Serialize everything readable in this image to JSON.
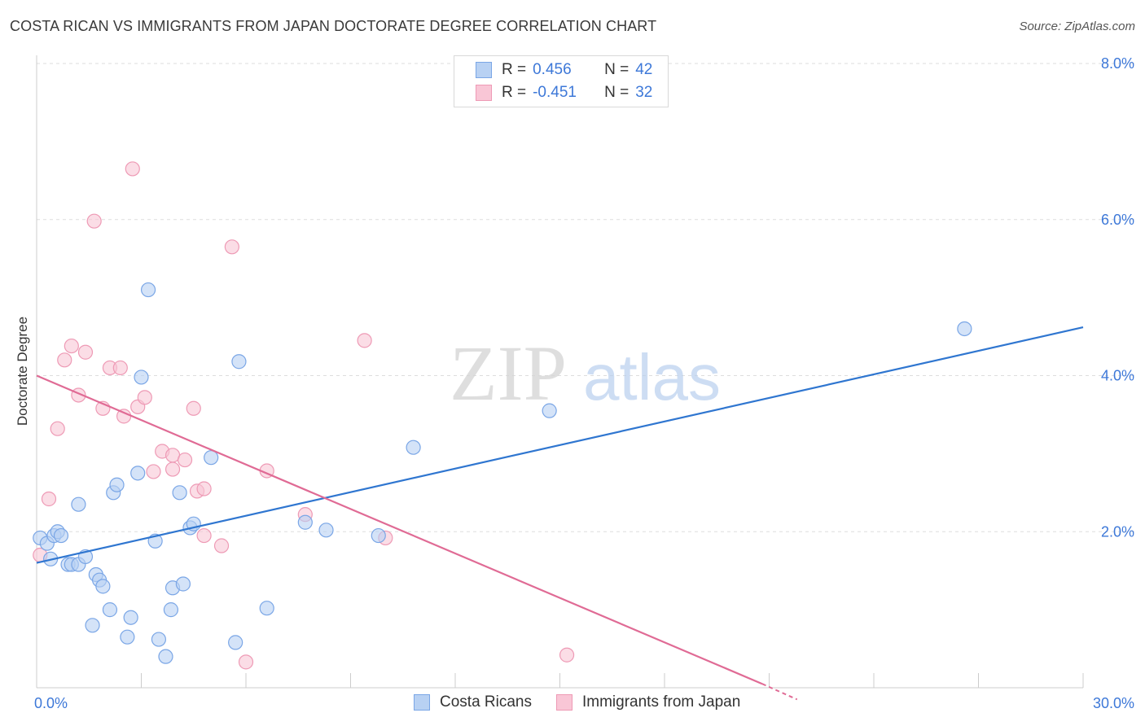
{
  "title": "COSTA RICAN VS IMMIGRANTS FROM JAPAN DOCTORATE DEGREE CORRELATION CHART",
  "source": "Source: ZipAtlas.com",
  "watermark": {
    "zip": "ZIP",
    "atlas": "atlas"
  },
  "legend": {
    "rows": [
      {
        "r_label": "R =",
        "r_value": "0.456",
        "n_label": "N =",
        "n_value": "42"
      },
      {
        "r_label": "R =",
        "r_value": "-0.451",
        "n_label": "N =",
        "n_value": "32"
      }
    ]
  },
  "bottom_legend": {
    "series1": "Costa Ricans",
    "series2": "Immigrants from Japan"
  },
  "colors": {
    "blue_fill": "#b8d1f3",
    "blue_stroke": "#7aa6e6",
    "blue_line": "#2f76d0",
    "pink_fill": "#f9c6d6",
    "pink_stroke": "#ee9ab5",
    "pink_line": "#e06b95",
    "tick_text": "#3d78d8",
    "grid": "#dddddd"
  },
  "chart_data": {
    "type": "scatter",
    "title": "COSTA RICAN VS IMMIGRANTS FROM JAPAN DOCTORATE DEGREE CORRELATION CHART",
    "xlabel": "",
    "ylabel": "Doctorate Degree",
    "xlim": [
      0,
      30
    ],
    "ylim": [
      0,
      8.0
    ],
    "x_tick_labels": [
      "0.0%",
      "30.0%"
    ],
    "y_tick_labels": [
      "2.0%",
      "4.0%",
      "6.0%",
      "8.0%"
    ],
    "y_ticks": [
      2,
      4,
      6,
      8
    ],
    "grid": "horizontal dashed",
    "legend_position": "top-center",
    "series": [
      {
        "name": "Costa Ricans",
        "r": 0.456,
        "n": 42,
        "trend": {
          "x": [
            0,
            30
          ],
          "y": [
            1.6,
            4.62
          ]
        },
        "points": [
          [
            0.1,
            1.92
          ],
          [
            0.3,
            1.85
          ],
          [
            0.4,
            1.65
          ],
          [
            0.5,
            1.95
          ],
          [
            0.6,
            2.0
          ],
          [
            0.7,
            1.95
          ],
          [
            0.9,
            1.58
          ],
          [
            1.0,
            1.58
          ],
          [
            1.2,
            2.35
          ],
          [
            1.2,
            1.58
          ],
          [
            1.4,
            1.68
          ],
          [
            1.6,
            0.8
          ],
          [
            1.7,
            1.45
          ],
          [
            1.8,
            1.38
          ],
          [
            1.9,
            1.3
          ],
          [
            2.1,
            1.0
          ],
          [
            2.2,
            2.5
          ],
          [
            2.3,
            2.6
          ],
          [
            2.6,
            0.65
          ],
          [
            2.7,
            0.9
          ],
          [
            2.9,
            2.75
          ],
          [
            3.0,
            3.98
          ],
          [
            3.2,
            5.1
          ],
          [
            3.4,
            1.88
          ],
          [
            3.5,
            0.62
          ],
          [
            3.7,
            0.4
          ],
          [
            3.85,
            1.0
          ],
          [
            3.9,
            1.28
          ],
          [
            4.1,
            2.5
          ],
          [
            4.2,
            1.33
          ],
          [
            4.4,
            2.05
          ],
          [
            4.5,
            2.1
          ],
          [
            5.0,
            2.95
          ],
          [
            5.7,
            0.58
          ],
          [
            5.8,
            4.18
          ],
          [
            6.6,
            1.02
          ],
          [
            7.7,
            2.12
          ],
          [
            8.3,
            2.02
          ],
          [
            9.8,
            1.95
          ],
          [
            10.8,
            3.08
          ],
          [
            14.7,
            3.55
          ],
          [
            26.6,
            4.6
          ]
        ]
      },
      {
        "name": "Immigrants from Japan",
        "r": -0.451,
        "n": 32,
        "trend": {
          "x": [
            0,
            20.8
          ],
          "y": [
            4.0,
            0.05
          ]
        },
        "points": [
          [
            0.1,
            1.7
          ],
          [
            0.35,
            2.42
          ],
          [
            0.6,
            3.32
          ],
          [
            0.8,
            4.2
          ],
          [
            1.0,
            4.38
          ],
          [
            1.2,
            3.75
          ],
          [
            1.4,
            4.3
          ],
          [
            1.65,
            5.98
          ],
          [
            1.9,
            3.58
          ],
          [
            2.1,
            4.1
          ],
          [
            2.4,
            4.1
          ],
          [
            2.5,
            3.48
          ],
          [
            2.75,
            6.65
          ],
          [
            2.9,
            3.6
          ],
          [
            3.1,
            3.72
          ],
          [
            3.35,
            2.77
          ],
          [
            3.6,
            3.03
          ],
          [
            3.9,
            2.8
          ],
          [
            3.9,
            2.98
          ],
          [
            4.25,
            2.92
          ],
          [
            4.5,
            3.58
          ],
          [
            4.6,
            2.52
          ],
          [
            4.8,
            2.55
          ],
          [
            4.8,
            1.95
          ],
          [
            5.3,
            1.82
          ],
          [
            5.6,
            5.65
          ],
          [
            6.0,
            0.33
          ],
          [
            6.6,
            2.78
          ],
          [
            7.7,
            2.22
          ],
          [
            9.4,
            4.45
          ],
          [
            10.0,
            1.92
          ],
          [
            15.2,
            0.42
          ]
        ]
      }
    ]
  }
}
